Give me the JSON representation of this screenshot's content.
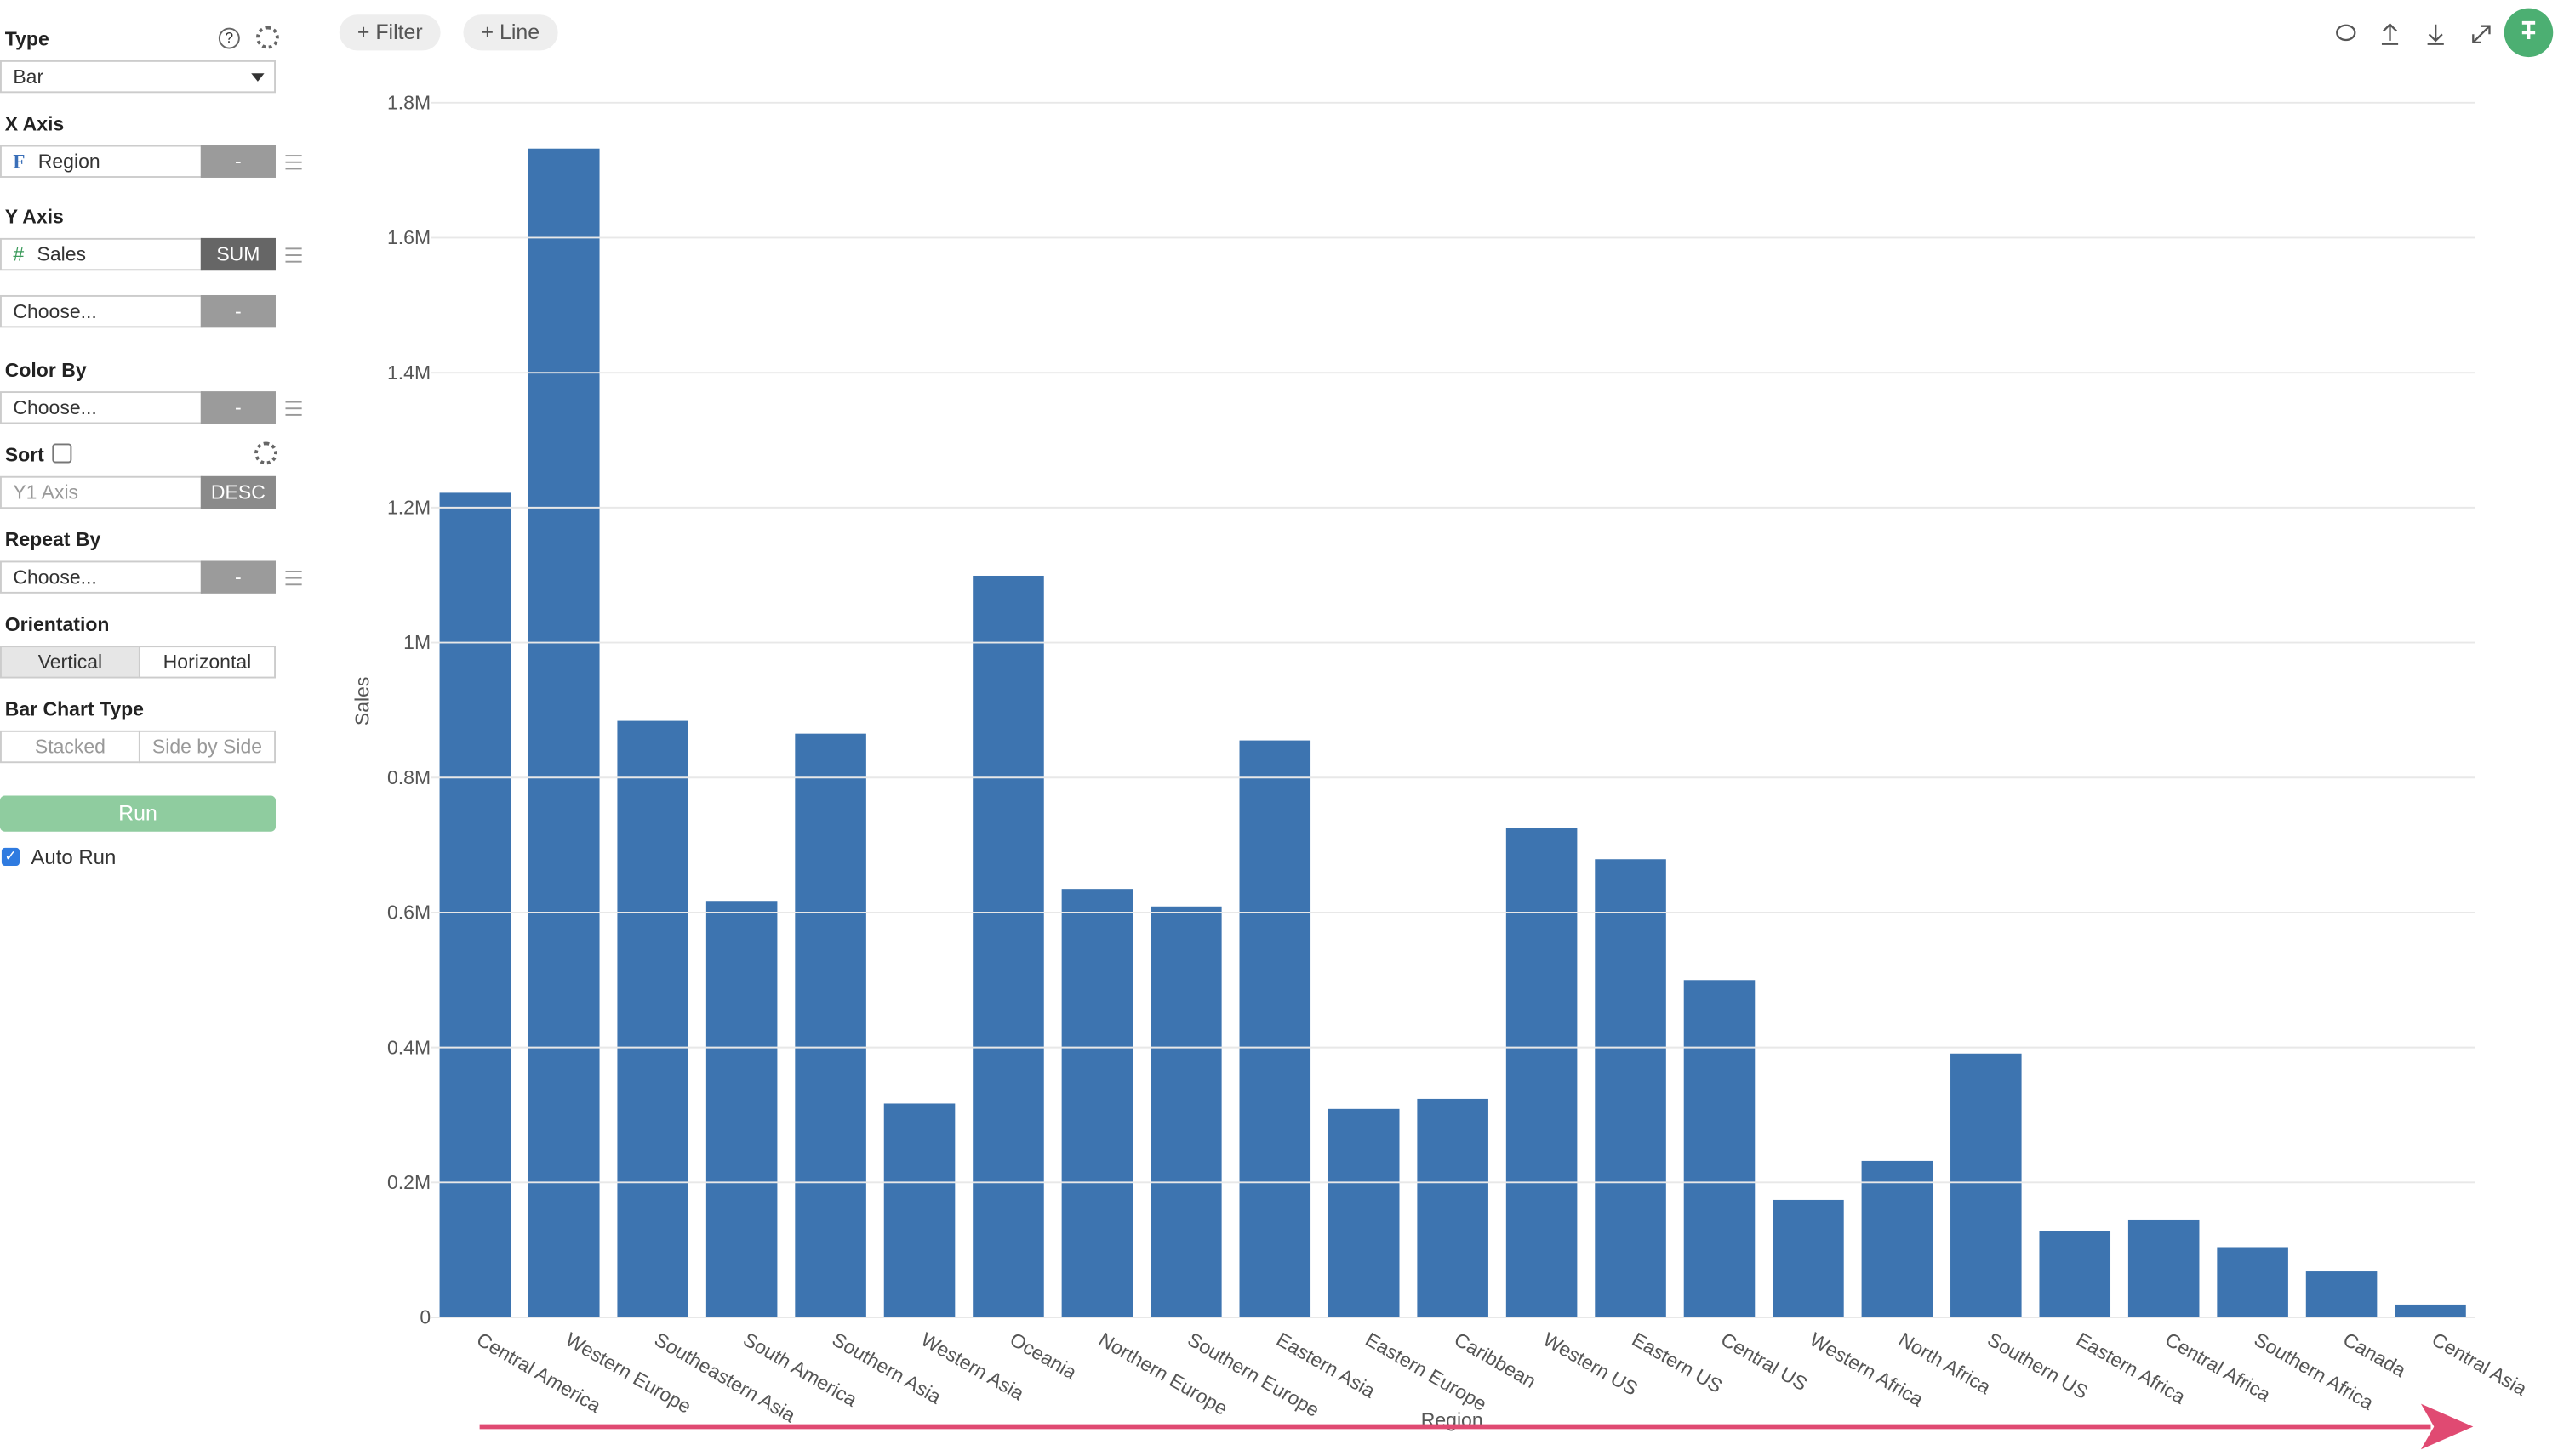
{
  "sidebar": {
    "type_label": "Type",
    "type_value": "Bar",
    "x_axis_label": "X Axis",
    "x_icon": "F",
    "x_field": "Region",
    "x_agg": "-",
    "y_axis_label": "Y Axis",
    "y_icon": "#",
    "y_field": "Sales",
    "y_agg": "SUM",
    "y2_field": "Choose...",
    "y2_agg": "-",
    "color_by_label": "Color By",
    "color_field": "Choose...",
    "color_agg": "-",
    "sort_label": "Sort",
    "sort_field": "Y1 Axis",
    "sort_order": "DESC",
    "repeat_label": "Repeat By",
    "repeat_field": "Choose...",
    "repeat_agg": "-",
    "orientation_label": "Orientation",
    "orientation_options": [
      "Vertical",
      "Horizontal"
    ],
    "bar_type_label": "Bar Chart Type",
    "bar_type_options": [
      "Stacked",
      "Side by Side"
    ],
    "run": "Run",
    "auto_run": "Auto Run"
  },
  "toolbar": {
    "filter": "+ Filter",
    "line": "+ Line"
  },
  "chart_data": {
    "type": "bar",
    "x_label": "Region",
    "y_label": "Sales",
    "color": "#3d74b0",
    "grid": true,
    "categories": [
      "Central America",
      "Western Europe",
      "Southeastern Asia",
      "South America",
      "Southern Asia",
      "Western Asia",
      "Oceania",
      "Northern Europe",
      "Southern Europe",
      "Eastern Asia",
      "Eastern Europe",
      "Caribbean",
      "Western US",
      "Eastern US",
      "Central US",
      "Western Africa",
      "North Africa",
      "Southern US",
      "Eastern Africa",
      "Central Africa",
      "Southern Africa",
      "Canada",
      "Central Asia"
    ],
    "values": [
      1222000,
      1732000,
      884000,
      616000,
      865000,
      317000,
      1099000,
      635000,
      609000,
      855000,
      309000,
      324000,
      725000,
      679000,
      500000,
      174000,
      232000,
      391000,
      128000,
      145000,
      104000,
      68000,
      19000
    ],
    "ylim": [
      0,
      1800000
    ],
    "yticks": [
      0,
      {
        "value": 200000,
        "label": "0.2M"
      },
      {
        "value": 400000,
        "label": "0.4M"
      },
      {
        "value": 600000,
        "label": "0.6M"
      },
      {
        "value": 800000,
        "label": "0.8M"
      },
      {
        "value": 1000000,
        "label": "1M"
      },
      {
        "value": 1200000,
        "label": "1.2M"
      },
      {
        "value": 1400000,
        "label": "1.4M"
      },
      {
        "value": 1600000,
        "label": "1.6M"
      },
      {
        "value": 1800000,
        "label": "1.8M"
      }
    ]
  }
}
